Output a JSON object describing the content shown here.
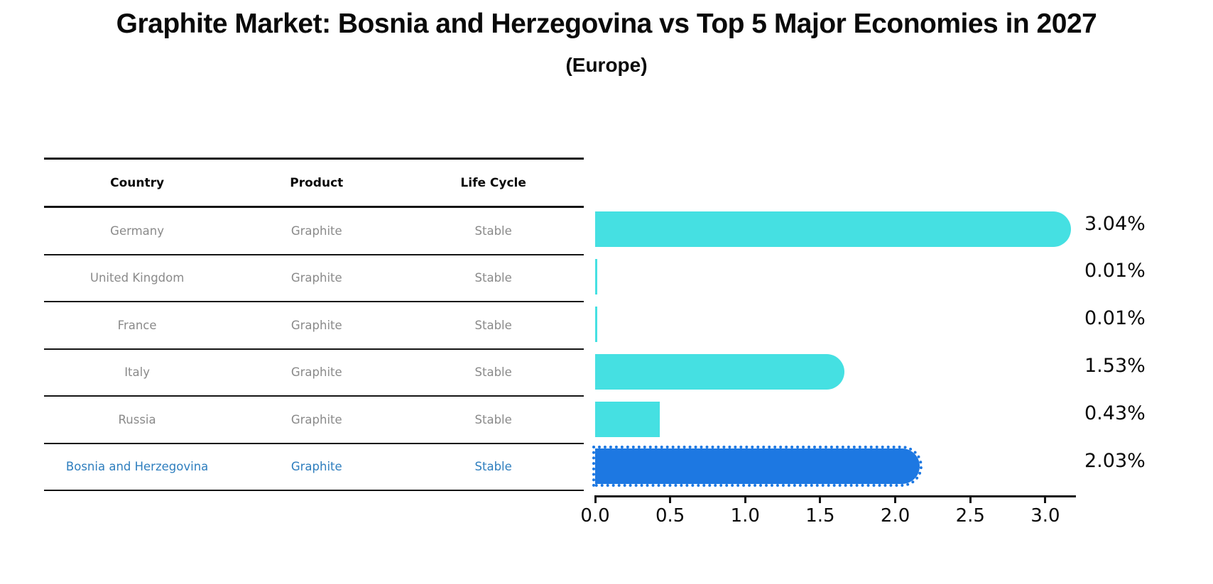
{
  "title": "Graphite Market: Bosnia and Herzegovina vs Top 5 Major Economies in 2027",
  "subtitle": "(Europe)",
  "table": {
    "headers": [
      "Country",
      "Product",
      "Life Cycle"
    ],
    "rows": [
      {
        "country": "Germany",
        "product": "Graphite",
        "life_cycle": "Stable",
        "highlight": false
      },
      {
        "country": "United Kingdom",
        "product": "Graphite",
        "life_cycle": "Stable",
        "highlight": false
      },
      {
        "country": "France",
        "product": "Graphite",
        "life_cycle": "Stable",
        "highlight": false
      },
      {
        "country": "Italy",
        "product": "Graphite",
        "life_cycle": "Stable",
        "highlight": false
      },
      {
        "country": "Russia",
        "product": "Graphite",
        "life_cycle": "Stable",
        "highlight": false
      },
      {
        "country": "Bosnia and Herzegovina",
        "product": "Graphite",
        "life_cycle": "Stable",
        "highlight": true
      }
    ]
  },
  "chart_data": {
    "type": "bar",
    "orientation": "horizontal",
    "title": "Graphite Market: Bosnia and Herzegovina vs Top 5 Major Economies in 2027 (Europe)",
    "categories": [
      "Germany",
      "United Kingdom",
      "France",
      "Italy",
      "Russia",
      "Bosnia and Herzegovina"
    ],
    "values": [
      3.04,
      0.01,
      0.01,
      1.53,
      0.43,
      2.03
    ],
    "labels": [
      "3.04%",
      "0.01%",
      "0.01%",
      "1.53%",
      "0.43%",
      "2.03%"
    ],
    "x_ticks": [
      "0.0",
      "0.5",
      "1.0",
      "1.5",
      "2.0",
      "2.5",
      "3.0"
    ],
    "xlim": [
      0,
      3.2
    ],
    "xlabel": "",
    "ylabel": "",
    "grid": false,
    "legend": false,
    "bar_color": "#45e0e2",
    "highlight_color": "#1d78e2",
    "highlight_index": 5
  },
  "colors": {
    "background": "#ffffff",
    "text": "#0a0a0a",
    "muted_text": "#8a8a8a",
    "highlight_text": "#2e7ebe",
    "line": "#141414"
  }
}
